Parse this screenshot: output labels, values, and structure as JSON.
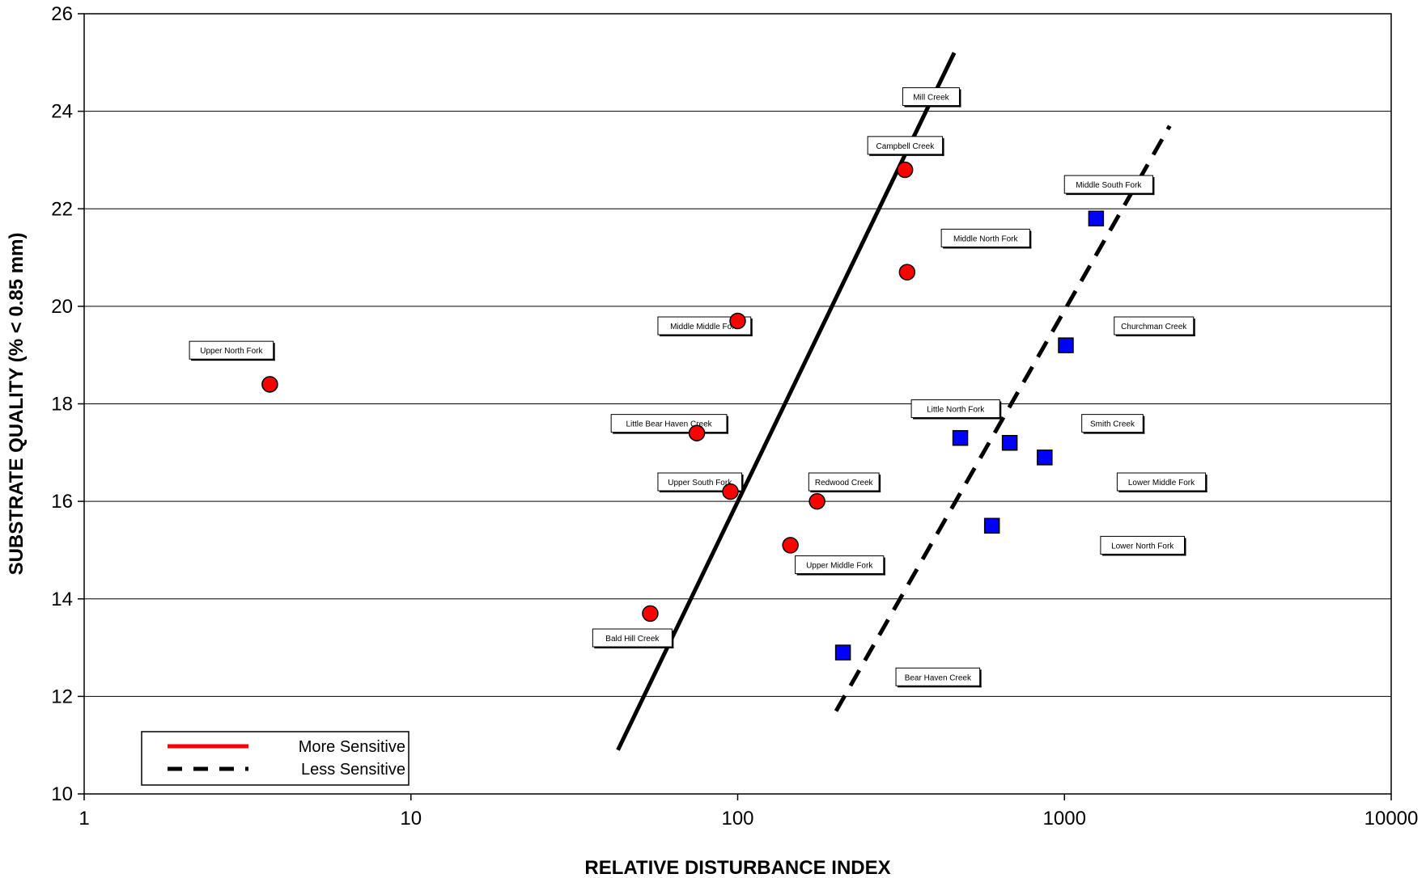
{
  "chart_data": {
    "type": "scatter",
    "title": "",
    "xlabel": "RELATIVE DISTURBANCE INDEX",
    "ylabel": "SUBSTRATE QUALITY  (% < 0.85 mm)",
    "xscale": "log",
    "xlim": [
      1,
      10000
    ],
    "ylim": [
      10,
      26
    ],
    "x_ticks": [
      1,
      10,
      100,
      1000,
      10000
    ],
    "x_tick_labels": [
      "1",
      "10",
      "100",
      "1000",
      "10000"
    ],
    "y_ticks": [
      10,
      12,
      14,
      16,
      18,
      20,
      22,
      24,
      26
    ],
    "y_tick_labels": [
      "10",
      "12",
      "14",
      "16",
      "18",
      "20",
      "22",
      "24",
      "26"
    ],
    "grid": "horizontal",
    "legend_position": "bottom-left",
    "series": [
      {
        "name": "More Sensitive",
        "marker": "circle",
        "color": "#ff0000",
        "points": [
          {
            "label": "Upper North Fork",
            "x": 3.7,
            "y": 18.4
          },
          {
            "label": "Middle Middle Fork",
            "x": 100,
            "y": 19.7
          },
          {
            "label": "Little Bear Haven Creek",
            "x": 75,
            "y": 17.4
          },
          {
            "label": "Upper South Fork",
            "x": 95,
            "y": 16.2
          },
          {
            "label": "Redwood Creek",
            "x": 175,
            "y": 16.0
          },
          {
            "label": "Upper Middle Fork",
            "x": 145,
            "y": 15.1
          },
          {
            "label": "Bald Hill Creek",
            "x": 54,
            "y": 13.7
          },
          {
            "label": "Campbell Creek",
            "x": 325,
            "y": 22.8
          },
          {
            "label": "Middle North Fork",
            "x": 330,
            "y": 20.7
          }
        ]
      },
      {
        "name": "Less Sensitive",
        "marker": "square",
        "color": "#0000ff",
        "points": [
          {
            "label": "Middle South Fork",
            "x": 1250,
            "y": 21.8
          },
          {
            "label": "Churchman Creek",
            "x": 1010,
            "y": 19.2
          },
          {
            "label": "Little North Fork",
            "x": 480,
            "y": 17.3
          },
          {
            "label": "Smith Creek",
            "x": 680,
            "y": 17.2
          },
          {
            "label": "Lower Middle Fork",
            "x": 870,
            "y": 16.9
          },
          {
            "label": "Lower North Fork",
            "x": 600,
            "y": 15.5
          },
          {
            "label": "Bear Haven Creek",
            "x": 210,
            "y": 12.9
          }
        ]
      }
    ],
    "annotations": [
      {
        "text": "Mill Creek",
        "x": 320,
        "y": 24.3
      },
      {
        "text": "Campbell Creek",
        "x": 250,
        "y": 23.3
      },
      {
        "text": "Middle South Fork",
        "x": 1000,
        "y": 22.5
      },
      {
        "text": "Middle North Fork",
        "x": 420,
        "y": 21.4
      },
      {
        "text": "Middle Middle Fork",
        "x": 57,
        "y": 19.6
      },
      {
        "text": "Churchman Creek",
        "x": 1420,
        "y": 19.6
      },
      {
        "text": "Upper North Fork",
        "x": 2.1,
        "y": 19.1
      },
      {
        "text": "Little North Fork",
        "x": 340,
        "y": 17.9
      },
      {
        "text": "Smith Creek",
        "x": 1130,
        "y": 17.6
      },
      {
        "text": "Little Bear Haven Creek",
        "x": 41,
        "y": 17.6
      },
      {
        "text": "Upper South Fork",
        "x": 57,
        "y": 16.4
      },
      {
        "text": "Redwood Creek",
        "x": 165,
        "y": 16.4
      },
      {
        "text": "Lower Middle Fork",
        "x": 1450,
        "y": 16.4
      },
      {
        "text": "Upper Middle Fork",
        "x": 150,
        "y": 14.7
      },
      {
        "text": "Lower North Fork",
        "x": 1290,
        "y": 15.1
      },
      {
        "text": "Bald Hill Creek",
        "x": 36,
        "y": 13.2
      },
      {
        "text": "Bear Haven Creek",
        "x": 305,
        "y": 12.4
      }
    ],
    "trend_lines": [
      {
        "name": "More Sensitive",
        "style": "solid",
        "color": "#000000",
        "x": [
          43,
          460
        ],
        "y": [
          10.9,
          25.2
        ]
      },
      {
        "name": "Less Sensitive",
        "style": "dashed",
        "color": "#000000",
        "x": [
          200,
          2100
        ],
        "y": [
          11.7,
          23.7
        ]
      }
    ],
    "legend": [
      {
        "label": "More Sensitive",
        "style": "solid",
        "color": "#ff0000"
      },
      {
        "label": "Less Sensitive",
        "style": "dashed",
        "color": "#000000"
      }
    ]
  }
}
